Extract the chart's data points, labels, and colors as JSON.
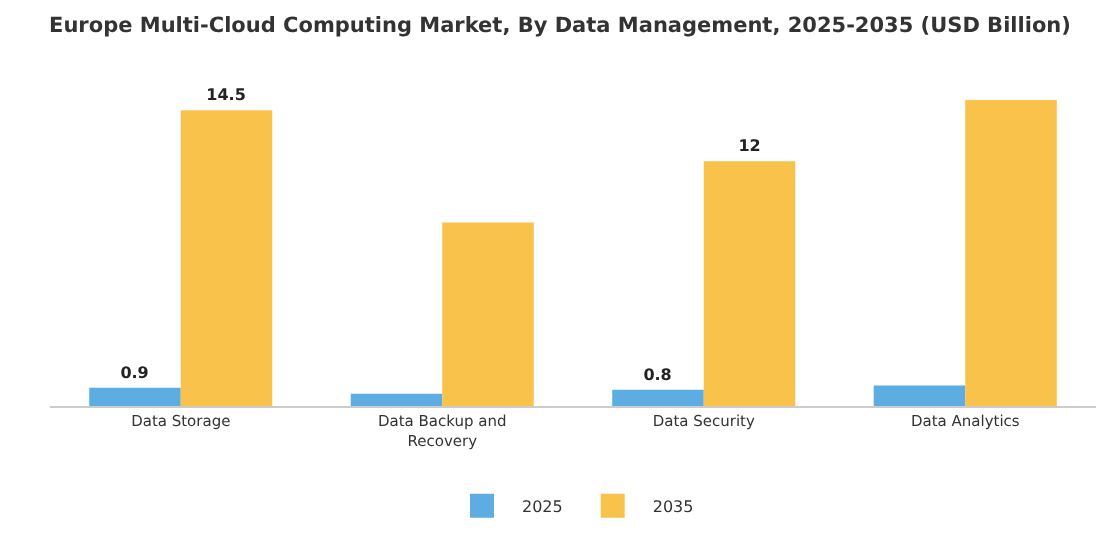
{
  "chart_data": {
    "type": "bar",
    "title": "Europe Multi-Cloud Computing Market, By Data Management, 2025-2035 (USD Billion)",
    "categories": [
      "Data Storage",
      "Data Backup and Recovery",
      "Data Security",
      "Data Analytics"
    ],
    "series": [
      {
        "name": "2025",
        "color": "#5dade2",
        "values": [
          0.9,
          0.6,
          0.8,
          1.0
        ],
        "value_labels": [
          "0.9",
          null,
          "0.8",
          null
        ]
      },
      {
        "name": "2035",
        "color": "#f9c24a",
        "values": [
          14.5,
          9.0,
          12,
          15.0
        ],
        "value_labels": [
          "14.5",
          null,
          "12",
          null
        ]
      }
    ],
    "legend": "bottom"
  }
}
